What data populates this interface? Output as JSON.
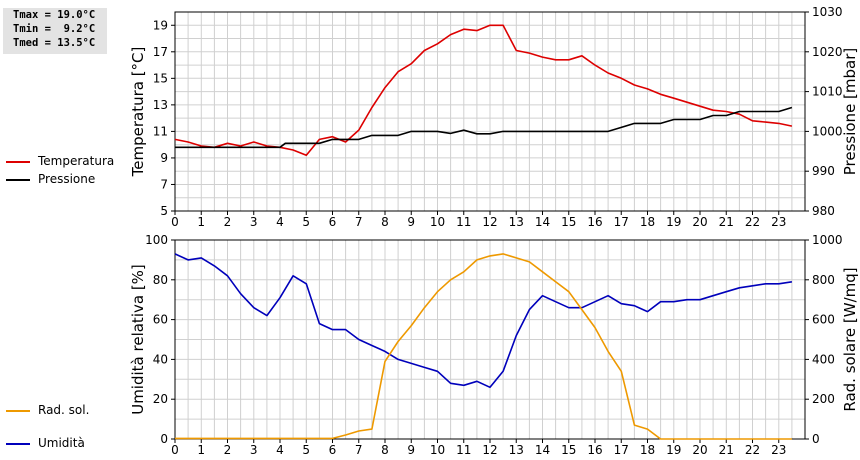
{
  "stats": {
    "tmax": "Tmax = 19.0°C",
    "tmin": "Tmin =  9.2°C",
    "tmed": "Tmed = 13.5°C"
  },
  "legends": {
    "temp": "Temperatura",
    "press": "Pressione",
    "hum": "Umidità",
    "rad": "Rad. sol."
  },
  "colors": {
    "temp": "#dd0000",
    "press": "#000000",
    "hum": "#0000bb",
    "rad": "#ee9900",
    "grid": "#d0d0d0"
  },
  "chart_data": [
    {
      "type": "line",
      "xlim": [
        0,
        24
      ],
      "xticks": [
        "0",
        "1",
        "2",
        "3",
        "4",
        "5",
        "6",
        "7",
        "8",
        "9",
        "10",
        "11",
        "12",
        "13",
        "14",
        "15",
        "16",
        "17",
        "18",
        "19",
        "20",
        "21",
        "22",
        "23"
      ],
      "ylabel": "Temperatura [°C]",
      "ylim": [
        5,
        20
      ],
      "yticks": [
        "5",
        "7",
        "9",
        "11",
        "13",
        "15",
        "17",
        "19"
      ],
      "y2label": "Pressione [mbar]",
      "y2lim": [
        980,
        1030
      ],
      "y2ticks": [
        "980",
        "990",
        "1000",
        "1010",
        "1020",
        "1030"
      ],
      "grid": true,
      "series": [
        {
          "name": "Temperatura",
          "axis": "left",
          "points": [
            [
              0,
              10.4
            ],
            [
              0.5,
              10.2
            ],
            [
              1,
              9.9
            ],
            [
              1.5,
              9.8
            ],
            [
              2,
              10.1
            ],
            [
              2.5,
              9.9
            ],
            [
              3,
              10.2
            ],
            [
              3.5,
              9.9
            ],
            [
              4,
              9.8
            ],
            [
              4.5,
              9.6
            ],
            [
              5,
              9.2
            ],
            [
              5.5,
              10.4
            ],
            [
              6,
              10.6
            ],
            [
              6.5,
              10.2
            ],
            [
              7,
              11.1
            ],
            [
              7.5,
              12.8
            ],
            [
              8,
              14.3
            ],
            [
              8.5,
              15.5
            ],
            [
              9,
              16.1
            ],
            [
              9.5,
              17.1
            ],
            [
              10,
              17.6
            ],
            [
              10.5,
              18.3
            ],
            [
              11,
              18.7
            ],
            [
              11.5,
              18.6
            ],
            [
              12,
              19.0
            ],
            [
              12.5,
              19.0
            ],
            [
              13,
              17.1
            ],
            [
              13.5,
              16.9
            ],
            [
              14,
              16.6
            ],
            [
              14.5,
              16.4
            ],
            [
              15,
              16.4
            ],
            [
              15.5,
              16.7
            ],
            [
              16,
              16.0
            ],
            [
              16.5,
              15.4
            ],
            [
              17,
              15.0
            ],
            [
              17.5,
              14.5
            ],
            [
              18,
              14.2
            ],
            [
              18.5,
              13.8
            ],
            [
              19,
              13.5
            ],
            [
              19.5,
              13.2
            ],
            [
              20,
              12.9
            ],
            [
              20.5,
              12.6
            ],
            [
              21,
              12.5
            ],
            [
              21.5,
              12.3
            ],
            [
              22,
              11.8
            ],
            [
              22.5,
              11.7
            ],
            [
              23,
              11.6
            ],
            [
              23.5,
              11.4
            ]
          ]
        },
        {
          "name": "Pressione",
          "axis": "right",
          "points": [
            [
              0,
              996
            ],
            [
              4,
              996
            ],
            [
              4.2,
              997
            ],
            [
              5.5,
              997
            ],
            [
              6,
              998
            ],
            [
              7,
              998
            ],
            [
              7.5,
              999
            ],
            [
              8.5,
              999
            ],
            [
              9,
              1000
            ],
            [
              10,
              1000
            ],
            [
              10.5,
              999.5
            ],
            [
              11,
              1000.3
            ],
            [
              11.5,
              999.4
            ],
            [
              12,
              999.4
            ],
            [
              12.5,
              1000
            ],
            [
              16.5,
              1000
            ],
            [
              17,
              1001
            ],
            [
              17.5,
              1002
            ],
            [
              18.5,
              1002
            ],
            [
              19,
              1003
            ],
            [
              20,
              1003
            ],
            [
              20.5,
              1004
            ],
            [
              21,
              1004
            ],
            [
              21.5,
              1005
            ],
            [
              23,
              1005
            ],
            [
              23.5,
              1006
            ]
          ]
        }
      ]
    },
    {
      "type": "line",
      "xlim": [
        0,
        24
      ],
      "xticks": [
        "0",
        "1",
        "2",
        "3",
        "4",
        "5",
        "6",
        "7",
        "8",
        "9",
        "10",
        "11",
        "12",
        "13",
        "14",
        "15",
        "16",
        "17",
        "18",
        "19",
        "20",
        "21",
        "22",
        "23"
      ],
      "ylabel": "Umidità relativa [%]",
      "ylim": [
        0,
        100
      ],
      "yticks": [
        "0",
        "20",
        "40",
        "60",
        "80",
        "100"
      ],
      "y2label": "Rad. solare [W/mq]",
      "y2lim": [
        0,
        1000
      ],
      "y2ticks": [
        "0",
        "200",
        "400",
        "600",
        "800",
        "1000"
      ],
      "grid": true,
      "series": [
        {
          "name": "Umidità",
          "axis": "left",
          "points": [
            [
              0,
              93
            ],
            [
              0.5,
              90
            ],
            [
              1,
              91
            ],
            [
              1.5,
              87
            ],
            [
              2,
              82
            ],
            [
              2.5,
              73
            ],
            [
              3,
              66
            ],
            [
              3.5,
              62
            ],
            [
              4,
              71
            ],
            [
              4.5,
              82
            ],
            [
              5,
              78
            ],
            [
              5.5,
              58
            ],
            [
              6,
              55
            ],
            [
              6.5,
              55
            ],
            [
              7,
              50
            ],
            [
              7.5,
              47
            ],
            [
              8,
              44
            ],
            [
              8.5,
              40
            ],
            [
              9,
              38
            ],
            [
              9.5,
              36
            ],
            [
              10,
              34
            ],
            [
              10.5,
              28
            ],
            [
              11,
              27
            ],
            [
              11.5,
              29
            ],
            [
              12,
              26
            ],
            [
              12.5,
              34
            ],
            [
              13,
              52
            ],
            [
              13.5,
              65
            ],
            [
              14,
              72
            ],
            [
              14.5,
              69
            ],
            [
              15,
              66
            ],
            [
              15.5,
              66
            ],
            [
              16,
              69
            ],
            [
              16.5,
              72
            ],
            [
              17,
              68
            ],
            [
              17.5,
              67
            ],
            [
              18,
              64
            ],
            [
              18.5,
              69
            ],
            [
              19,
              69
            ],
            [
              19.5,
              70
            ],
            [
              20,
              70
            ],
            [
              20.5,
              72
            ],
            [
              21,
              74
            ],
            [
              21.5,
              76
            ],
            [
              22,
              77
            ],
            [
              22.5,
              78
            ],
            [
              23,
              78
            ],
            [
              23.5,
              79
            ]
          ]
        },
        {
          "name": "Rad. sol.",
          "axis": "right",
          "points": [
            [
              0,
              3
            ],
            [
              6,
              3
            ],
            [
              6.5,
              20
            ],
            [
              7,
              40
            ],
            [
              7.5,
              50
            ],
            [
              8,
              390
            ],
            [
              8.5,
              490
            ],
            [
              9,
              570
            ],
            [
              9.5,
              660
            ],
            [
              10,
              740
            ],
            [
              10.5,
              800
            ],
            [
              11,
              840
            ],
            [
              11.5,
              900
            ],
            [
              12,
              920
            ],
            [
              12.5,
              930
            ],
            [
              13,
              910
            ],
            [
              13.5,
              890
            ],
            [
              14,
              840
            ],
            [
              14.5,
              790
            ],
            [
              15,
              740
            ],
            [
              15.5,
              650
            ],
            [
              16,
              560
            ],
            [
              16.5,
              440
            ],
            [
              17,
              340
            ],
            [
              17.5,
              70
            ],
            [
              18,
              50
            ],
            [
              18.5,
              0
            ],
            [
              23.5,
              0
            ]
          ]
        }
      ]
    }
  ]
}
